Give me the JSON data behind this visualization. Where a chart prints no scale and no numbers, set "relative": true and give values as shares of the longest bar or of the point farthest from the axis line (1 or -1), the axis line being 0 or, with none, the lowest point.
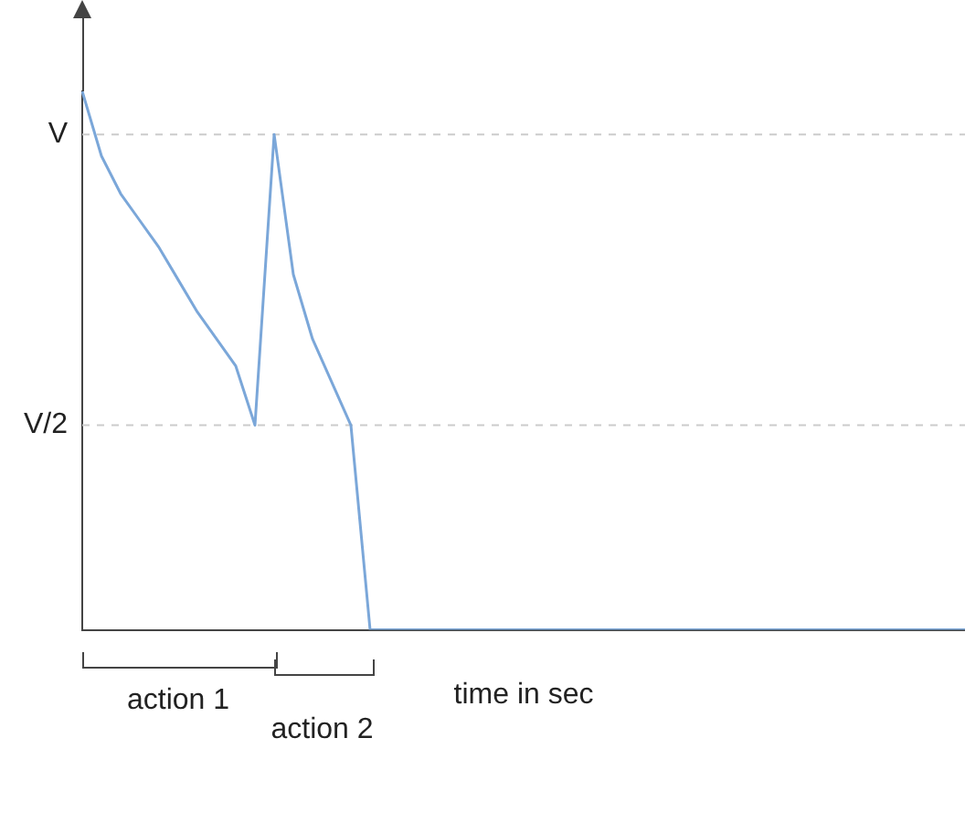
{
  "chart_data": {
    "type": "line",
    "relative": true,
    "xlabel": "time in sec",
    "annotations": [
      "action 1",
      "action 2"
    ],
    "categories": [
      null,
      null,
      null,
      null,
      null,
      null,
      null,
      null,
      null,
      null,
      null,
      null,
      null,
      null,
      null,
      null,
      null,
      null,
      null,
      null,
      null,
      null,
      null,
      null,
      null,
      null,
      null,
      null,
      null,
      null,
      null,
      null,
      null,
      null,
      null,
      null,
      null,
      null,
      null,
      null,
      null,
      null,
      null,
      null,
      null,
      null,
      null
    ],
    "ref_lines": [
      {
        "axis": "y",
        "value": 0.92,
        "label": "V",
        "line_style": "dashed",
        "color": "#cccccc"
      },
      {
        "axis": "y",
        "value": 0.38,
        "label": "V/2",
        "line_style": "dashed",
        "color": "#cccccc"
      }
    ],
    "marker": "none",
    "series": [
      {
        "color": "#7ba7d9",
        "values": [
          1,
          0.88,
          0.81,
          0.76,
          0.71,
          0.65,
          0.59,
          0.54,
          0.49,
          0.38,
          0.92,
          0.66,
          0.54,
          0.46,
          0.38,
          0,
          0,
          0,
          0,
          0,
          0,
          0,
          0,
          0,
          0,
          0,
          0,
          0,
          0,
          0,
          0,
          0,
          0,
          0,
          0,
          0,
          0,
          0,
          0,
          0,
          0,
          0,
          0,
          0,
          0,
          0,
          0
        ]
      }
    ]
  }
}
